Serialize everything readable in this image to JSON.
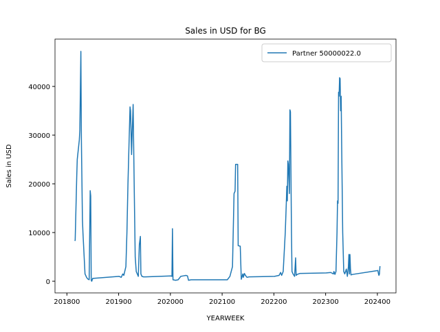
{
  "chart_data": {
    "type": "line",
    "title": "Sales in USD for BG",
    "xlabel": "YEARWEEK",
    "ylabel": "Sales in USD",
    "xlim": [
      201777,
      202436
    ],
    "ylim": [
      -2394,
      49718
    ],
    "xticks": [
      201800,
      201900,
      202000,
      202100,
      202200,
      202300,
      202400
    ],
    "yticks": [
      0,
      10000,
      20000,
      30000,
      40000
    ],
    "legend": "upper right",
    "x": [
      201815,
      201816,
      201819,
      201820,
      201824,
      201825,
      201827,
      201828,
      201830,
      201831,
      201835,
      201838,
      201840,
      201843,
      201845,
      201846,
      201847,
      201848,
      201850,
      201852,
      201901,
      201905,
      201908,
      201910,
      201914,
      201916,
      201918,
      201920,
      201922,
      201923,
      201925,
      201926,
      201928,
      201930,
      201932,
      201934,
      201936,
      201938,
      201940,
      201942,
      201943,
      201945,
      201948,
      201952,
      202001,
      202003,
      202004,
      202005,
      202010,
      202015,
      202020,
      202025,
      202030,
      202033,
      202035,
      202040,
      202052,
      202101,
      202110,
      202115,
      202120,
      202123,
      202125,
      202126,
      202130,
      202131,
      202135,
      202137,
      202140,
      202141,
      202143,
      202145,
      202148,
      202152,
      202201,
      202210,
      202213,
      202215,
      202218,
      202222,
      202224,
      202225,
      202226,
      202227,
      202228,
      202230,
      202231,
      202232,
      202234,
      202235,
      202237,
      202240,
      202242,
      202243,
      202245,
      202250,
      202252,
      202301,
      202310,
      202315,
      202316,
      202318,
      202320,
      202322,
      202323,
      202324,
      202325,
      202326,
      202327,
      202328,
      202329,
      202330,
      202331,
      202333,
      202335,
      202337,
      202340,
      202342,
      202344,
      202345,
      202346,
      202347,
      202348,
      202349,
      202352,
      202401,
      202402,
      202403,
      202404,
      202405
    ],
    "series": [
      {
        "name": "Partner 50000022.0",
        "color": "#1f77b4",
        "values": [
          8300,
          8400,
          21500,
          25000,
          29000,
          31000,
          47200,
          29000,
          12700,
          10000,
          1500,
          800,
          500,
          300,
          18600,
          17500,
          200,
          0,
          600,
          600,
          1000,
          800,
          1500,
          1200,
          3000,
          10000,
          20000,
          28000,
          35800,
          35000,
          26000,
          30000,
          36300,
          20000,
          5000,
          2000,
          1500,
          1000,
          7500,
          9200,
          1500,
          1000,
          900,
          900,
          1100,
          1000,
          10800,
          300,
          200,
          300,
          1000,
          1100,
          1200,
          1100,
          200,
          300,
          300,
          300,
          300,
          1000,
          3000,
          18000,
          18500,
          24000,
          24000,
          7300,
          7200,
          400,
          1500,
          800,
          1600,
          1200,
          800,
          900,
          1000,
          1200,
          1800,
          1200,
          2000,
          10000,
          16000,
          19500,
          16500,
          24700,
          24000,
          18000,
          35200,
          34800,
          10000,
          2000,
          1500,
          1000,
          4800,
          1200,
          1400,
          1600,
          1600,
          1700,
          1800,
          1500,
          2000,
          1400,
          2000,
          10000,
          16500,
          16000,
          38800,
          38000,
          41800,
          41600,
          35000,
          38000,
          28000,
          10000,
          2000,
          1500,
          2500,
          1000,
          3000,
          5500,
          1500,
          5500,
          2500,
          1300,
          1400,
          2200,
          1600,
          1200,
          1500,
          3100
        ]
      }
    ]
  }
}
